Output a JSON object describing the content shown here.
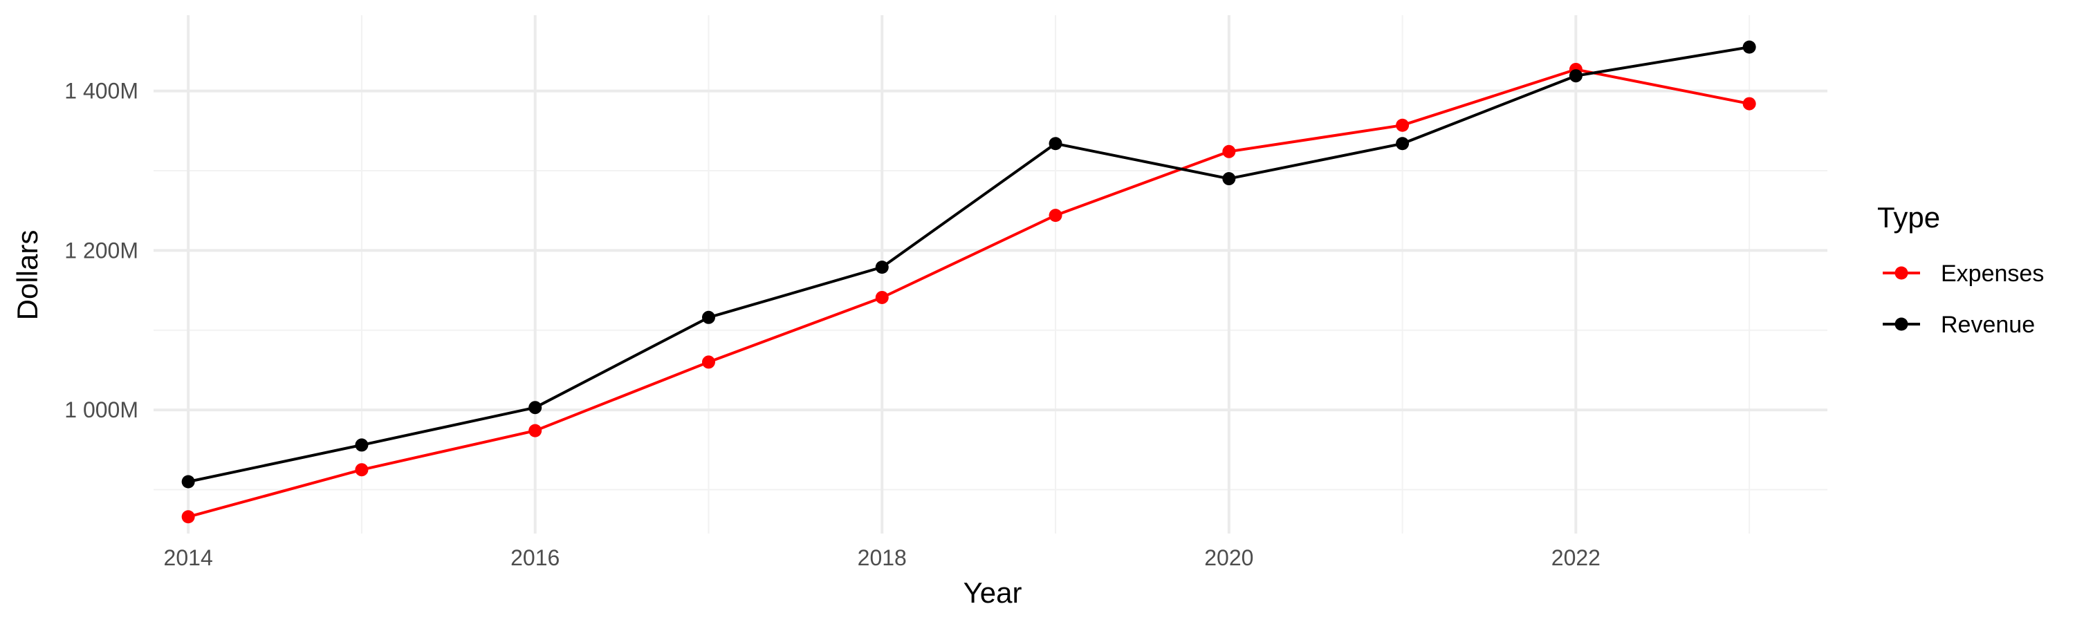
{
  "chart_data": {
    "type": "line",
    "xlabel": "Year",
    "ylabel": "Dollars",
    "x": [
      2014,
      2015,
      2016,
      2017,
      2018,
      2019,
      2020,
      2021,
      2022,
      2023
    ],
    "xlim": [
      2013.8,
      2023.45
    ],
    "x_ticks": [
      2014,
      2016,
      2018,
      2020,
      2022
    ],
    "x_tick_labels": [
      "2014",
      "2016",
      "2018",
      "2020",
      "2022"
    ],
    "ylim": [
      845,
      1495
    ],
    "y_ticks": [
      1000,
      1200,
      1400
    ],
    "y_tick_labels": [
      "1 000M",
      "1 200M",
      "1 400M"
    ],
    "y_minor_ticks": [
      900,
      1100,
      1300
    ],
    "grid": true,
    "legend": {
      "title": "Type",
      "position": "right"
    },
    "series": [
      {
        "name": "Expenses",
        "color": "#ff0000",
        "values": [
          866,
          925,
          974,
          1060,
          1141,
          1244,
          1324,
          1357,
          1427,
          1384
        ]
      },
      {
        "name": "Revenue",
        "color": "#000000",
        "values": [
          910,
          956,
          1003,
          1116,
          1179,
          1334,
          1290,
          1334,
          1419,
          1455
        ]
      }
    ]
  }
}
